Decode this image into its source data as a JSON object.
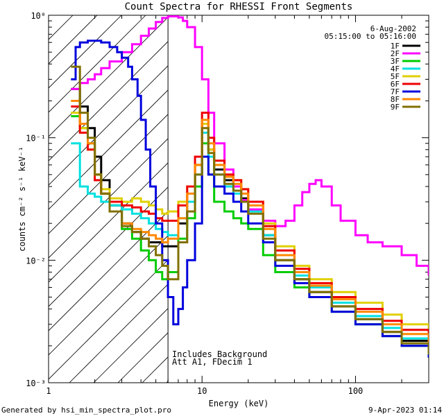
{
  "chart_data": {
    "type": "line",
    "title": "Count Spectra for RHESSI Front Segments",
    "xlabel": "Energy (keV)",
    "ylabel": "counts cm⁻² s⁻¹ keV⁻¹",
    "xscale": "log",
    "yscale": "log",
    "xlim": [
      1,
      300
    ],
    "ylim": [
      0.001,
      1
    ],
    "xticks": [
      {
        "v": 1,
        "label": "1"
      },
      {
        "v": 10,
        "label": "10"
      },
      {
        "v": 100,
        "label": "100"
      }
    ],
    "yticks": [
      {
        "v": 1,
        "label": "10⁰"
      },
      {
        "v": 0.1,
        "label": "10⁻¹"
      },
      {
        "v": 0.01,
        "label": "10⁻²"
      },
      {
        "v": 0.001,
        "label": "10⁻³"
      }
    ],
    "date": "6-Aug-2002",
    "time_range": "05:15:00 to 05:16:00",
    "threshold_energy": 6.0,
    "hatch_region": [
      1,
      6.0
    ],
    "annotations": [
      "Includes Background",
      "Att A1, FDecim 1"
    ],
    "series": [
      {
        "name": "1F",
        "color": "#000000",
        "x": [
          1.4,
          1.6,
          1.8,
          2.0,
          2.2,
          2.5,
          3.0,
          3.5,
          4.0,
          4.5,
          5.0,
          5.5,
          6.0,
          7.0,
          8.0,
          9.0,
          10.0,
          11.0,
          12.0,
          14.0,
          16.0,
          18.0,
          20.0,
          25.0,
          30.0,
          40.0,
          50.0,
          70.0,
          100.0,
          150.0,
          200.0,
          300.0
        ],
        "y": [
          0.25,
          0.18,
          0.12,
          0.07,
          0.045,
          0.028,
          0.02,
          0.017,
          0.015,
          0.014,
          0.014,
          0.013,
          0.013,
          0.02,
          0.03,
          0.06,
          0.13,
          0.08,
          0.055,
          0.045,
          0.04,
          0.032,
          0.026,
          0.016,
          0.01,
          0.007,
          0.0055,
          0.0042,
          0.0033,
          0.0026,
          0.0022,
          0.0018
        ]
      },
      {
        "name": "2F",
        "color": "#ff00ff",
        "x": [
          1.4,
          1.6,
          1.8,
          2.0,
          2.2,
          2.5,
          3.0,
          3.5,
          4.0,
          4.5,
          5.0,
          5.5,
          6.0,
          6.5,
          7.0,
          7.5,
          8.0,
          9.0,
          10.0,
          11.0,
          12.0,
          14.0,
          16.0,
          18.0,
          20.0,
          25.0,
          30.0,
          35.0,
          40.0,
          45.0,
          50.0,
          55.0,
          60.0,
          70.0,
          80.0,
          100.0,
          120.0,
          150.0,
          200.0,
          250.0,
          300.0
        ],
        "y": [
          0.25,
          0.28,
          0.3,
          0.33,
          0.37,
          0.42,
          0.5,
          0.58,
          0.68,
          0.78,
          0.88,
          0.95,
          0.98,
          0.98,
          0.96,
          0.9,
          0.8,
          0.55,
          0.3,
          0.16,
          0.09,
          0.055,
          0.04,
          0.031,
          0.026,
          0.021,
          0.019,
          0.021,
          0.028,
          0.036,
          0.042,
          0.045,
          0.04,
          0.028,
          0.021,
          0.016,
          0.014,
          0.013,
          0.011,
          0.009,
          0.0075
        ]
      },
      {
        "name": "3F",
        "color": "#00cc00",
        "x": [
          1.4,
          1.6,
          1.8,
          2.0,
          2.2,
          2.5,
          3.0,
          3.5,
          4.0,
          4.5,
          5.0,
          5.5,
          6.0,
          7.0,
          8.0,
          9.0,
          10.0,
          11.0,
          12.0,
          14.0,
          16.0,
          18.0,
          20.0,
          25.0,
          30.0,
          40.0,
          50.0,
          70.0,
          100.0,
          150.0,
          200.0,
          300.0
        ],
        "y": [
          0.15,
          0.12,
          0.09,
          0.05,
          0.035,
          0.025,
          0.018,
          0.015,
          0.012,
          0.01,
          0.008,
          0.007,
          0.008,
          0.015,
          0.022,
          0.04,
          0.09,
          0.05,
          0.03,
          0.025,
          0.022,
          0.02,
          0.018,
          0.011,
          0.008,
          0.006,
          0.005,
          0.0038,
          0.003,
          0.0024,
          0.002,
          0.0016
        ]
      },
      {
        "name": "4F",
        "color": "#00e0e0",
        "x": [
          1.4,
          1.6,
          1.8,
          2.0,
          2.2,
          2.5,
          3.0,
          3.5,
          4.0,
          4.5,
          5.0,
          5.5,
          6.0,
          7.0,
          8.0,
          9.0,
          10.0,
          11.0,
          12.0,
          14.0,
          16.0,
          18.0,
          20.0,
          25.0,
          30.0,
          40.0,
          50.0,
          70.0,
          100.0,
          150.0,
          200.0,
          300.0
        ],
        "y": [
          0.09,
          0.04,
          0.035,
          0.033,
          0.03,
          0.028,
          0.026,
          0.024,
          0.022,
          0.02,
          0.018,
          0.017,
          0.016,
          0.022,
          0.03,
          0.05,
          0.11,
          0.07,
          0.05,
          0.04,
          0.035,
          0.03,
          0.025,
          0.016,
          0.011,
          0.0075,
          0.006,
          0.0045,
          0.0035,
          0.0028,
          0.0023,
          0.0019
        ]
      },
      {
        "name": "5F",
        "color": "#e0d000",
        "x": [
          1.4,
          1.6,
          1.8,
          2.0,
          2.2,
          2.5,
          3.0,
          3.5,
          4.0,
          4.5,
          5.0,
          5.5,
          6.0,
          7.0,
          8.0,
          9.0,
          10.0,
          11.0,
          12.0,
          14.0,
          16.0,
          18.0,
          20.0,
          25.0,
          30.0,
          40.0,
          50.0,
          70.0,
          100.0,
          150.0,
          200.0,
          300.0
        ],
        "y": [
          0.16,
          0.12,
          0.08,
          0.05,
          0.038,
          0.032,
          0.03,
          0.032,
          0.03,
          0.028,
          0.026,
          0.024,
          0.025,
          0.03,
          0.04,
          0.06,
          0.13,
          0.08,
          0.06,
          0.05,
          0.045,
          0.038,
          0.03,
          0.02,
          0.013,
          0.009,
          0.007,
          0.0055,
          0.0045,
          0.0036,
          0.003,
          0.0025
        ]
      },
      {
        "name": "6F",
        "color": "#ee0000",
        "x": [
          1.4,
          1.6,
          1.8,
          2.0,
          2.2,
          2.5,
          3.0,
          3.5,
          4.0,
          4.5,
          5.0,
          5.5,
          6.0,
          7.0,
          8.0,
          9.0,
          10.0,
          11.0,
          12.0,
          14.0,
          16.0,
          18.0,
          20.0,
          25.0,
          30.0,
          40.0,
          50.0,
          70.0,
          100.0,
          150.0,
          200.0,
          300.0
        ],
        "y": [
          0.18,
          0.11,
          0.08,
          0.045,
          0.035,
          0.03,
          0.028,
          0.027,
          0.025,
          0.024,
          0.022,
          0.021,
          0.021,
          0.028,
          0.04,
          0.07,
          0.16,
          0.1,
          0.065,
          0.05,
          0.045,
          0.038,
          0.03,
          0.019,
          0.012,
          0.0085,
          0.0065,
          0.005,
          0.004,
          0.0032,
          0.0027,
          0.0022
        ]
      },
      {
        "name": "7F",
        "color": "#0000dd",
        "x": [
          1.4,
          1.5,
          1.6,
          1.8,
          2.0,
          2.2,
          2.5,
          2.8,
          3.0,
          3.3,
          3.5,
          3.8,
          4.0,
          4.3,
          4.6,
          5.0,
          5.5,
          6.0,
          6.5,
          7.0,
          7.5,
          8.0,
          9.0,
          10.0,
          11.0,
          12.0,
          14.0,
          16.0,
          18.0,
          20.0,
          25.0,
          30.0,
          40.0,
          50.0,
          70.0,
          100.0,
          150.0,
          200.0,
          300.0
        ],
        "y": [
          0.3,
          0.55,
          0.6,
          0.62,
          0.62,
          0.6,
          0.55,
          0.5,
          0.45,
          0.38,
          0.3,
          0.22,
          0.14,
          0.08,
          0.04,
          0.02,
          0.01,
          0.005,
          0.003,
          0.004,
          0.006,
          0.01,
          0.02,
          0.07,
          0.05,
          0.04,
          0.035,
          0.03,
          0.025,
          0.02,
          0.014,
          0.009,
          0.0065,
          0.005,
          0.0038,
          0.003,
          0.0024,
          0.002,
          0.0016
        ]
      },
      {
        "name": "8F",
        "color": "#ff8800",
        "x": [
          1.4,
          1.6,
          1.8,
          2.0,
          2.2,
          2.5,
          3.0,
          3.5,
          4.0,
          4.5,
          5.0,
          5.5,
          6.0,
          7.0,
          8.0,
          9.0,
          10.0,
          11.0,
          12.0,
          14.0,
          16.0,
          18.0,
          20.0,
          25.0,
          30.0,
          40.0,
          50.0,
          70.0,
          100.0,
          150.0,
          200.0,
          300.0
        ],
        "y": [
          0.2,
          0.13,
          0.09,
          0.05,
          0.035,
          0.025,
          0.02,
          0.018,
          0.017,
          0.016,
          0.015,
          0.014,
          0.015,
          0.022,
          0.035,
          0.06,
          0.14,
          0.09,
          0.06,
          0.048,
          0.042,
          0.035,
          0.028,
          0.018,
          0.011,
          0.008,
          0.0062,
          0.0048,
          0.0038,
          0.003,
          0.0025,
          0.002
        ]
      },
      {
        "name": "9F",
        "color": "#807000",
        "x": [
          1.4,
          1.6,
          1.8,
          2.0,
          2.2,
          2.5,
          3.0,
          3.5,
          4.0,
          4.5,
          5.0,
          5.5,
          6.0,
          7.0,
          8.0,
          9.0,
          10.0,
          11.0,
          12.0,
          14.0,
          16.0,
          18.0,
          20.0,
          25.0,
          30.0,
          40.0,
          50.0,
          70.0,
          100.0,
          150.0,
          200.0,
          300.0
        ],
        "y": [
          0.38,
          0.16,
          0.1,
          0.05,
          0.035,
          0.025,
          0.019,
          0.017,
          0.015,
          0.013,
          0.011,
          0.009,
          0.007,
          0.014,
          0.025,
          0.05,
          0.12,
          0.075,
          0.05,
          0.042,
          0.037,
          0.03,
          0.024,
          0.015,
          0.01,
          0.007,
          0.0055,
          0.0042,
          0.0033,
          0.0026,
          0.0021,
          0.0017
        ]
      }
    ]
  },
  "footer": {
    "generated": "Generated by hsi_min_spectra_plot.pro",
    "timestamp": "9-Apr-2023 01:14"
  }
}
